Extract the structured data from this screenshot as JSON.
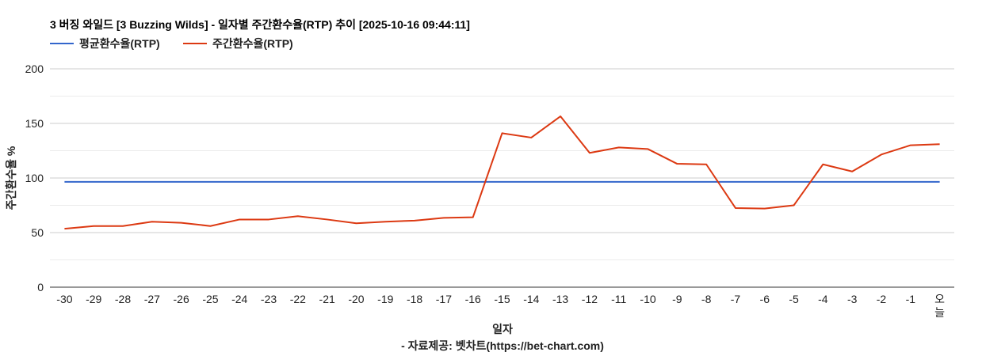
{
  "chart_data": {
    "type": "line",
    "title": "3 버징 와일드 [3 Buzzing Wilds] - 일자별 주간환수율(RTP) 추이 [2025-10-16 09:44:11]",
    "xlabel": "일자",
    "ylabel": "주간환수율 %",
    "source": "- 자료제공: 벳차트(https://bet-chart.com)",
    "ylim": [
      0,
      200
    ],
    "yticks": [
      "0",
      "50",
      "100",
      "150",
      "200"
    ],
    "categories": [
      "-30",
      "-29",
      "-28",
      "-27",
      "-26",
      "-25",
      "-24",
      "-23",
      "-22",
      "-21",
      "-20",
      "-19",
      "-18",
      "-17",
      "-16",
      "-15",
      "-14",
      "-13",
      "-12",
      "-11",
      "-10",
      "-9",
      "-8",
      "-7",
      "-6",
      "-5",
      "-4",
      "-3",
      "-2",
      "-1",
      "오늘"
    ],
    "legend_position": "top-left",
    "grid": true,
    "series": [
      {
        "name": "평균환수율(RTP)",
        "color": "#3366cc",
        "values": [
          96.5,
          96.5,
          96.5,
          96.5,
          96.5,
          96.5,
          96.5,
          96.5,
          96.5,
          96.5,
          96.5,
          96.5,
          96.5,
          96.5,
          96.5,
          96.5,
          96.5,
          96.5,
          96.5,
          96.5,
          96.5,
          96.5,
          96.5,
          96.5,
          96.5,
          96.5,
          96.5,
          96.5,
          96.5,
          96.5,
          96.5
        ]
      },
      {
        "name": "주간환수율(RTP)",
        "color": "#dc3912",
        "values": [
          53.5,
          56,
          56,
          60,
          59,
          56,
          62,
          62,
          65,
          62,
          58.5,
          60,
          61,
          63.5,
          64,
          141,
          137,
          156.5,
          123,
          128,
          126.5,
          113,
          112.5,
          72.5,
          72,
          75,
          112.5,
          106,
          121.5,
          130,
          131
        ]
      }
    ]
  }
}
